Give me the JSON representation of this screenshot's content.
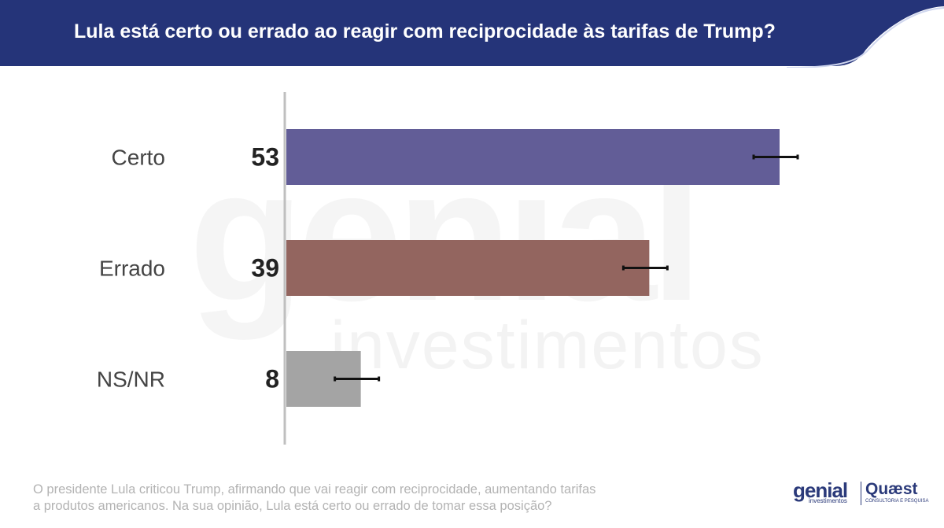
{
  "header": {
    "title": "Lula está certo ou errado ao reagir com reciprocidade às tarifas de Trump?",
    "background_color": "#253479"
  },
  "watermark": {
    "brand": "genial",
    "sub": "investimentos"
  },
  "chart_data": {
    "type": "bar",
    "orientation": "horizontal",
    "categories": [
      "Certo",
      "Errado",
      "NS/NR"
    ],
    "values": [
      53,
      39,
      8
    ],
    "colors": [
      "#625d97",
      "#93655f",
      "#a4a4a4"
    ],
    "error_bars": true,
    "xlim": [
      0,
      60
    ],
    "title": "",
    "xlabel": "",
    "ylabel": ""
  },
  "footer": {
    "note_line1": "O presidente Lula criticou Trump, afirmando que vai reagir com reciprocidade, aumentando tarifas",
    "note_line2": "a produtos americanos. Na sua opinião, Lula está certo ou errado de tomar essa posição?"
  },
  "logos": {
    "genial": "genial",
    "genial_sub": "investimentos",
    "quaest": "Quæst",
    "quaest_sub": "CONSULTORIA E PESQUISA"
  }
}
